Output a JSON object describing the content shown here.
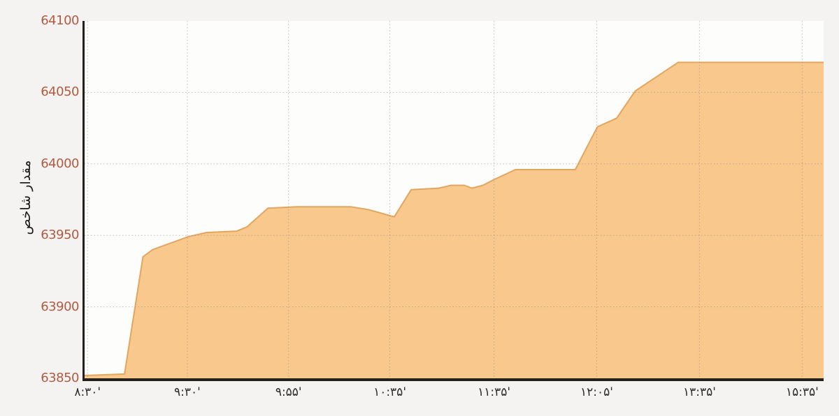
{
  "page": {
    "background": "#f4f3f1"
  },
  "chart_data": {
    "type": "area",
    "title": "",
    "xlabel": "",
    "ylabel": "مقدار شاخص",
    "ylim": [
      63850,
      64100
    ],
    "grid": "dotted",
    "legend": "none",
    "y_ticks": [
      64100,
      64050,
      64000,
      63950,
      63900,
      63850
    ],
    "x_ticks": [
      {
        "pos": 0.4,
        "label": "۸:۳۰'"
      },
      {
        "pos": 13.9,
        "label": "۹:۳۰'"
      },
      {
        "pos": 27.6,
        "label": "۹:۵۵'"
      },
      {
        "pos": 41.3,
        "label": "۱۰:۳۵'"
      },
      {
        "pos": 55.4,
        "label": "۱۱:۳۵'"
      },
      {
        "pos": 69.3,
        "label": "۱۲:۰۵'"
      },
      {
        "pos": 83.2,
        "label": "۱۳:۳۵'"
      },
      {
        "pos": 97.1,
        "label": "۱۵:۳۵'"
      }
    ],
    "points": [
      [
        0.0,
        63852
      ],
      [
        5.4,
        63853
      ],
      [
        7.9,
        63935
      ],
      [
        9.2,
        63940
      ],
      [
        14.0,
        63949
      ],
      [
        16.5,
        63952
      ],
      [
        20.6,
        63953
      ],
      [
        22.0,
        63956
      ],
      [
        24.8,
        63969
      ],
      [
        28.7,
        63970
      ],
      [
        36.0,
        63970
      ],
      [
        38.4,
        63968
      ],
      [
        41.9,
        63963
      ],
      [
        44.2,
        63982
      ],
      [
        47.9,
        63983
      ],
      [
        49.6,
        63985
      ],
      [
        51.4,
        63985
      ],
      [
        52.4,
        63983
      ],
      [
        53.9,
        63985
      ],
      [
        55.4,
        63989
      ],
      [
        58.3,
        63996
      ],
      [
        66.4,
        63996
      ],
      [
        69.4,
        64026
      ],
      [
        72.0,
        64032
      ],
      [
        74.5,
        64051
      ],
      [
        80.3,
        64071
      ],
      [
        100.0,
        64071
      ]
    ],
    "colors": {
      "fill": "#f8c88c",
      "stroke": "#e2a660",
      "y_tick": "#b25b41",
      "x_tick": "#2d2d2d",
      "axis": "#24201b",
      "plot_bg": "#fdfdfc",
      "page_bg": "#f4f3f1"
    }
  }
}
